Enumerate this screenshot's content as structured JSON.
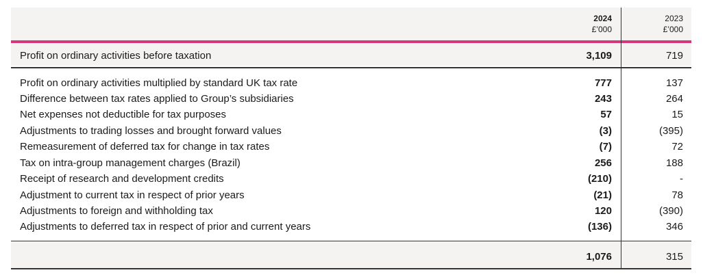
{
  "header": {
    "col_2024_year": "2024",
    "col_2024_unit": "£’000",
    "col_2023_year": "2023",
    "col_2023_unit": "£’000"
  },
  "profit_before_tax": {
    "label": "Profit on ordinary activities before taxation",
    "v2024": "3,109",
    "v2023": "719"
  },
  "rows": [
    {
      "label": "Profit on ordinary activities multiplied by standard UK tax rate",
      "v2024": "777",
      "v2023": "137"
    },
    {
      "label": "Difference between tax rates applied to Group’s subsidiaries",
      "v2024": "243",
      "v2023": "264"
    },
    {
      "label": "Net expenses not deductible for tax purposes",
      "v2024": "57",
      "v2023": "15"
    },
    {
      "label": "Adjustments to trading losses and brought forward values",
      "v2024": "(3)",
      "v2023": "(395)"
    },
    {
      "label": "Remeasurement of deferred tax for change in tax rates",
      "v2024": "(7)",
      "v2023": "72"
    },
    {
      "label": "Tax on intra-group management charges (Brazil)",
      "v2024": "256",
      "v2023": "188"
    },
    {
      "label": "Receipt of research and development credits",
      "v2024": "(210)",
      "v2023": "-"
    },
    {
      "label": "Adjustment to current tax in respect of prior years",
      "v2024": "(21)",
      "v2023": "78"
    },
    {
      "label": "Adjustments to foreign and withholding tax",
      "v2024": "120",
      "v2023": "(390)"
    },
    {
      "label": "Adjustments to deferred tax in respect of prior and current years",
      "v2024": "(136)",
      "v2023": "346"
    }
  ],
  "total": {
    "v2024": "1,076",
    "v2023": "315"
  },
  "colors": {
    "accent": "#d6377a",
    "band": "#f4f3f2",
    "rule": "#333333"
  }
}
